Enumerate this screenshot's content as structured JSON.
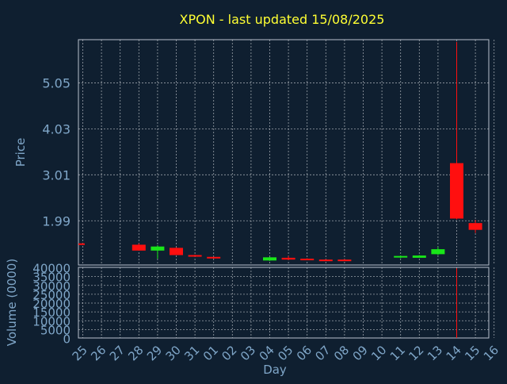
{
  "chart_data": {
    "type": "candlestick",
    "title": "XPON - last updated 15/08/2025",
    "price_panel": {
      "ylabel": "Price",
      "yticks": [
        "5.05",
        "4.03",
        "3.01",
        "1.99"
      ],
      "ylim": [
        1.0,
        6.0
      ],
      "grid": true
    },
    "volume_panel": {
      "ylabel": "Volume (0000)",
      "yticks": [
        "40000",
        "35000",
        "30000",
        "25000",
        "20000",
        "15000",
        "10000",
        "5000",
        "0"
      ],
      "ylim": [
        0,
        40000
      ],
      "grid": true
    },
    "xlabel": "Day",
    "x_ticks": [
      "25",
      "26",
      "27",
      "28",
      "29",
      "30",
      "31",
      "01",
      "02",
      "03",
      "04",
      "05",
      "06",
      "07",
      "08",
      "09",
      "10",
      "11",
      "12",
      "13",
      "14",
      "15",
      "16"
    ],
    "candles": [
      {
        "day": "25",
        "open": 1.48,
        "close": 1.47,
        "high": 1.48,
        "low": 1.47,
        "volume": 0
      },
      {
        "day": "28",
        "open": 1.45,
        "close": 1.32,
        "high": 1.48,
        "low": 1.32,
        "volume": 0
      },
      {
        "day": "29",
        "open": 1.32,
        "close": 1.41,
        "high": 1.44,
        "low": 1.14,
        "volume": 0
      },
      {
        "day": "30",
        "open": 1.38,
        "close": 1.22,
        "high": 1.39,
        "low": 1.22,
        "volume": 0
      },
      {
        "day": "31",
        "open": 1.22,
        "close": 1.2,
        "high": 1.23,
        "low": 1.2,
        "volume": 0
      },
      {
        "day": "01",
        "open": 1.18,
        "close": 1.15,
        "high": 1.18,
        "low": 1.14,
        "volume": 0
      },
      {
        "day": "04",
        "open": 1.1,
        "close": 1.17,
        "high": 1.18,
        "low": 1.09,
        "volume": 0
      },
      {
        "day": "05",
        "open": 1.16,
        "close": 1.12,
        "high": 1.2,
        "low": 1.11,
        "volume": 0
      },
      {
        "day": "06",
        "open": 1.14,
        "close": 1.12,
        "high": 1.15,
        "low": 1.11,
        "volume": 0
      },
      {
        "day": "07",
        "open": 1.12,
        "close": 1.1,
        "high": 1.13,
        "low": 1.1,
        "volume": 0
      },
      {
        "day": "08",
        "open": 1.12,
        "close": 1.1,
        "high": 1.13,
        "low": 1.1,
        "volume": 0
      },
      {
        "day": "11",
        "open": 1.17,
        "close": 1.2,
        "high": 1.21,
        "low": 1.15,
        "volume": 0
      },
      {
        "day": "12",
        "open": 1.16,
        "close": 1.21,
        "high": 1.22,
        "low": 1.16,
        "volume": 0
      },
      {
        "day": "13",
        "open": 1.24,
        "close": 1.35,
        "high": 1.4,
        "low": 1.22,
        "volume": 0
      },
      {
        "day": "14",
        "open": 3.26,
        "close": 2.03,
        "high": 5.95,
        "low": 2.01,
        "volume": 39500
      },
      {
        "day": "15",
        "open": 1.93,
        "close": 1.78,
        "high": 2.0,
        "low": 1.71,
        "volume": 0
      }
    ],
    "colors": {
      "background": "#0f1f30",
      "axis": "#b9c2ce",
      "grid": "#c8ccd2",
      "title": "#ffff33",
      "label": "#7fa6c8",
      "up": "#19e619",
      "down": "#ff0f0f"
    }
  }
}
